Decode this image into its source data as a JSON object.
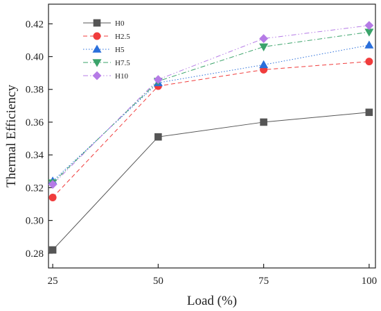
{
  "chart_data": {
    "type": "line",
    "title": "",
    "xlabel": "Load (%)",
    "ylabel": "Thermal Efficiency",
    "x": [
      25,
      50,
      75,
      100
    ],
    "xticks": [
      "25",
      "50",
      "75",
      "100"
    ],
    "yticks": [
      "0.28",
      "0.30",
      "0.32",
      "0.34",
      "0.36",
      "0.38",
      "0.40",
      "0.42"
    ],
    "xlim": [
      24,
      101.5
    ],
    "ylim": [
      0.271,
      0.432
    ],
    "grid": false,
    "legend_position": "top-left",
    "series": [
      {
        "name": "H0",
        "values": [
          0.282,
          0.351,
          0.36,
          0.366
        ],
        "color": "#555555",
        "marker": "square",
        "dash": "solid"
      },
      {
        "name": "H2.5",
        "values": [
          0.314,
          0.382,
          0.392,
          0.397
        ],
        "color": "#f03c3c",
        "marker": "circle",
        "dash": "dashed"
      },
      {
        "name": "H5",
        "values": [
          0.324,
          0.384,
          0.395,
          0.407
        ],
        "color": "#2a6fdb",
        "marker": "triangle-up",
        "dash": "dotted"
      },
      {
        "name": "H7.5",
        "values": [
          0.323,
          0.385,
          0.406,
          0.415
        ],
        "color": "#3aa36a",
        "marker": "triangle-down",
        "dash": "dashdot"
      },
      {
        "name": "H10",
        "values": [
          0.322,
          0.386,
          0.411,
          0.419
        ],
        "color": "#b57be6",
        "marker": "diamond",
        "dash": "dashdotdot"
      }
    ]
  }
}
